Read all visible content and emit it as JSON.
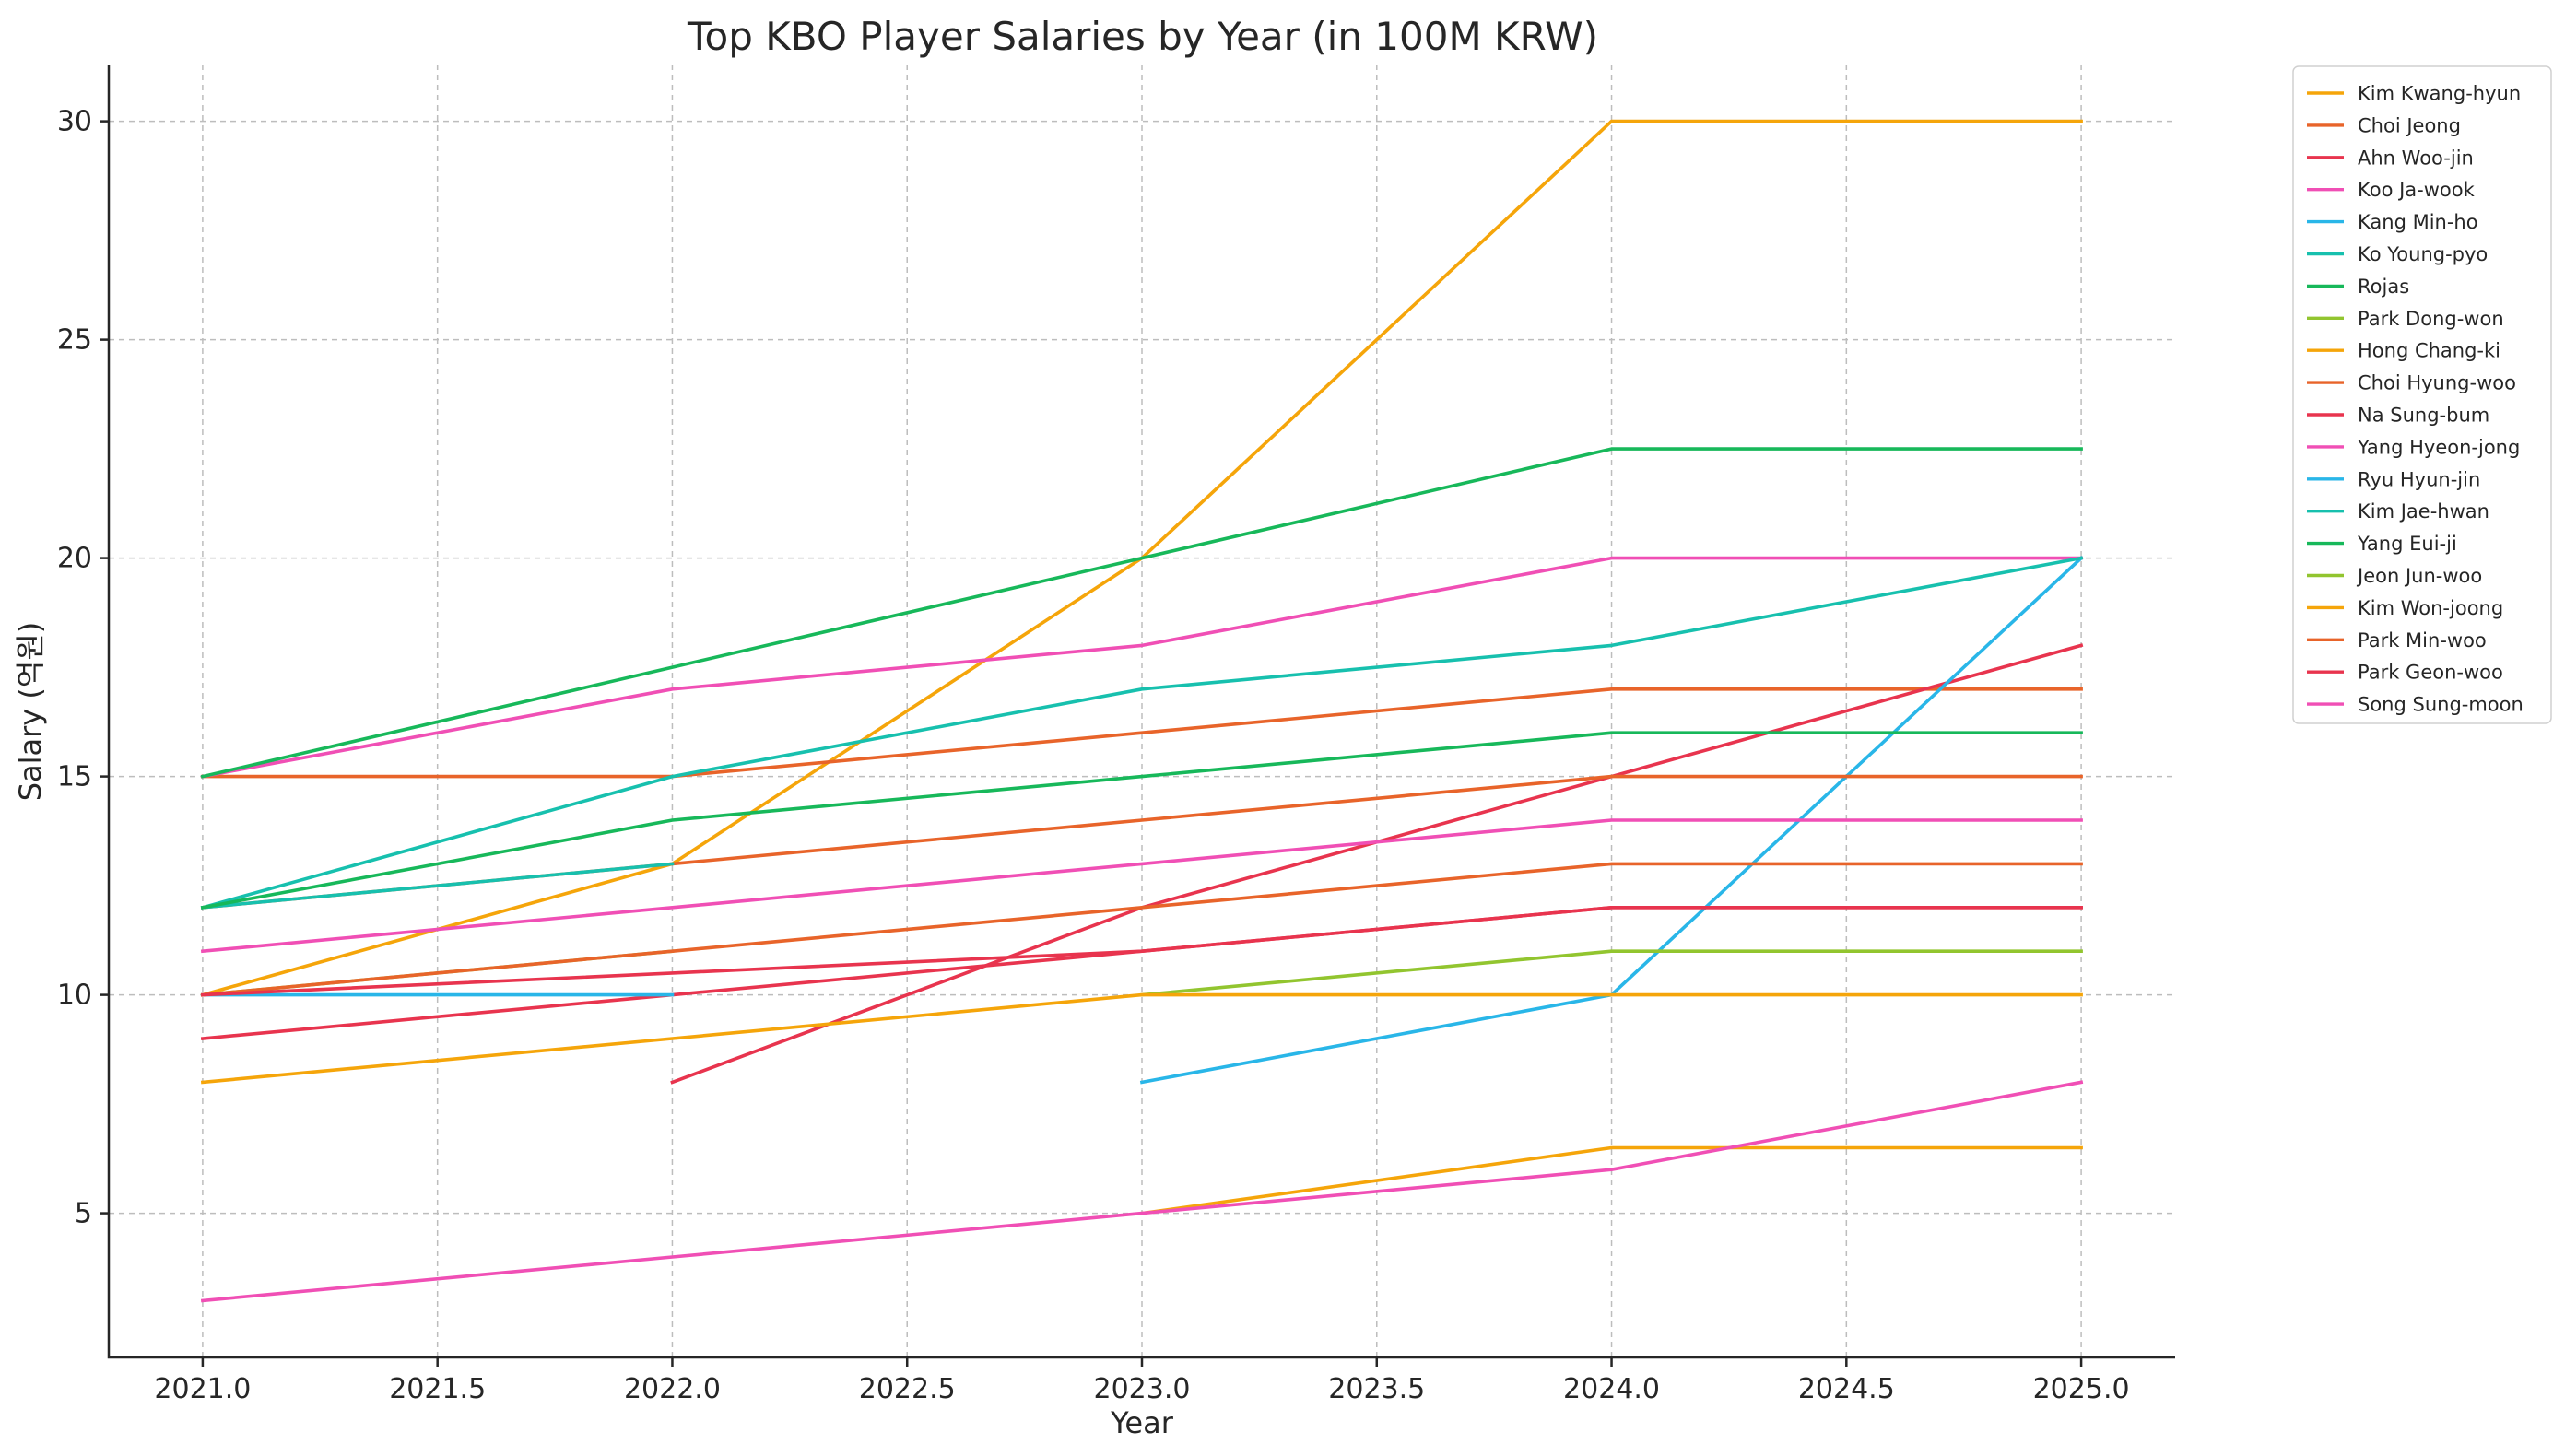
{
  "chart_data": {
    "type": "line",
    "title": "Top KBO Player Salaries by Year (in 100M KRW)",
    "xlabel": "Year",
    "ylabel": "Salary (억원)",
    "xlim": [
      2020.8,
      2025.2
    ],
    "ylim": [
      1.7,
      31.3
    ],
    "xticks": [
      2021.0,
      2021.5,
      2022.0,
      2022.5,
      2023.0,
      2023.5,
      2024.0,
      2024.5,
      2025.0
    ],
    "xtick_labels": [
      "2021.0",
      "2021.5",
      "2022.0",
      "2022.5",
      "2023.0",
      "2023.5",
      "2024.0",
      "2024.5",
      "2025.0"
    ],
    "yticks": [
      5,
      10,
      15,
      20,
      25,
      30
    ],
    "ytick_labels": [
      "5",
      "10",
      "15",
      "20",
      "25",
      "30"
    ],
    "grid": true,
    "legend_position": "outside-right",
    "series": [
      {
        "name": "Kim Kwang-hyun",
        "color": "#f5a50a",
        "x": [
          2021,
          2022,
          2023,
          2024,
          2025
        ],
        "values": [
          10,
          13,
          20,
          30,
          30
        ]
      },
      {
        "name": "Choi Jeong",
        "color": "#e8642a",
        "x": [
          2021,
          2022,
          2023,
          2024,
          2025
        ],
        "values": [
          15,
          15,
          16,
          17,
          17
        ]
      },
      {
        "name": "Ahn Woo-jin",
        "color": "#e8344e",
        "x": [
          2022,
          2023,
          2024,
          2025
        ],
        "values": [
          8,
          12,
          15,
          18
        ]
      },
      {
        "name": "Koo Ja-wook",
        "color": "#f04fb5",
        "x": [
          2021,
          2022,
          2023,
          2024,
          2025
        ],
        "values": [
          15,
          17,
          18,
          20,
          20
        ]
      },
      {
        "name": "Kang Min-ho",
        "color": "#29b6e8",
        "x": [
          2023,
          2024,
          2025
        ],
        "values": [
          8,
          10,
          20
        ]
      },
      {
        "name": "Ko Young-pyo",
        "color": "#17c0ae",
        "x": [
          2021,
          2022,
          2023,
          2024,
          2025
        ],
        "values": [
          12,
          15,
          17,
          18,
          20
        ]
      },
      {
        "name": "Rojas",
        "color": "#17b85a",
        "x": [
          2021,
          2022,
          2023,
          2024,
          2025
        ],
        "values": [
          15,
          17.5,
          20,
          22.5,
          22.5
        ]
      },
      {
        "name": "Park Dong-won",
        "color": "#92c52f",
        "x": [
          2023,
          2024,
          2025
        ],
        "values": [
          10,
          11,
          11
        ]
      },
      {
        "name": "Hong Chang-ki",
        "color": "#f5a50a",
        "x": [
          2021,
          2022,
          2023,
          2024,
          2025
        ],
        "values": [
          8,
          9,
          10,
          10,
          10
        ]
      },
      {
        "name": "Choi Hyung-woo",
        "color": "#e8642a",
        "x": [
          2021,
          2022,
          2023,
          2024,
          2025
        ],
        "values": [
          12,
          13,
          14,
          15,
          15
        ]
      },
      {
        "name": "Na Sung-bum",
        "color": "#e8344e",
        "x": [
          2021,
          2022,
          2023,
          2024,
          2025
        ],
        "values": [
          9,
          10,
          11,
          12,
          12
        ]
      },
      {
        "name": "Yang Hyeon-jong",
        "color": "#f04fb5",
        "x": [
          2021,
          2022,
          2023,
          2024,
          2025
        ],
        "values": [
          11,
          12,
          13,
          14,
          14
        ]
      },
      {
        "name": "Ryu Hyun-jin",
        "color": "#29b6e8",
        "x": [
          2021,
          2022
        ],
        "values": [
          10,
          10
        ]
      },
      {
        "name": "Kim Jae-hwan",
        "color": "#17c0ae",
        "x": [
          2021,
          2022
        ],
        "values": [
          12,
          13
        ]
      },
      {
        "name": "Yang Eui-ji",
        "color": "#17b85a",
        "x": [
          2021,
          2022,
          2023,
          2024,
          2025
        ],
        "values": [
          12,
          14,
          15,
          16,
          16
        ]
      },
      {
        "name": "Jeon Jun-woo",
        "color": "#92c52f",
        "x": [
          2021,
          2022
        ],
        "values": [
          10,
          11
        ]
      },
      {
        "name": "Kim Won-joong",
        "color": "#f5a50a",
        "x": [
          2023,
          2024,
          2025
        ],
        "values": [
          5,
          6.5,
          6.5
        ]
      },
      {
        "name": "Park Min-woo",
        "color": "#e8642a",
        "x": [
          2021,
          2022,
          2023,
          2024,
          2025
        ],
        "values": [
          10,
          11,
          12,
          13,
          13
        ]
      },
      {
        "name": "Park Geon-woo",
        "color": "#e8344e",
        "x": [
          2021,
          2022,
          2023,
          2024,
          2025
        ],
        "values": [
          10,
          10.5,
          11,
          12,
          12
        ]
      },
      {
        "name": "Song Sung-moon",
        "color": "#f04fb5",
        "x": [
          2021,
          2022,
          2023,
          2024,
          2025
        ],
        "values": [
          3,
          4,
          5,
          6,
          8
        ]
      }
    ]
  }
}
